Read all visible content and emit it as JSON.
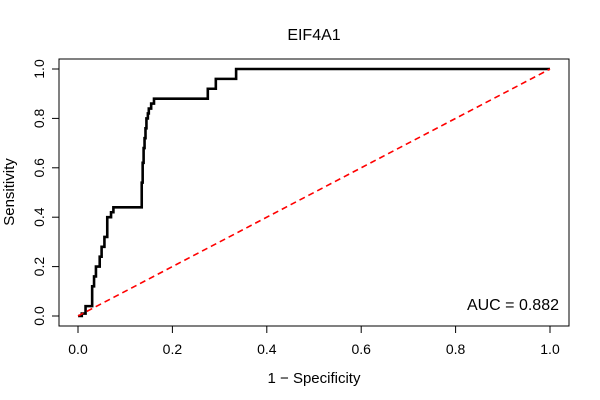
{
  "chart_data": {
    "type": "line",
    "title": "EIF4A1",
    "xlabel": "1 − Specificity",
    "ylabel": "Sensitivity",
    "xlim": [
      0,
      1
    ],
    "ylim": [
      0,
      1
    ],
    "xticks": [
      "0.0",
      "0.2",
      "0.4",
      "0.6",
      "0.8",
      "1.0"
    ],
    "yticks": [
      "0.0",
      "0.2",
      "0.4",
      "0.6",
      "0.8",
      "1.0"
    ],
    "grid": false,
    "annotation": "AUC = 0.882",
    "series": [
      {
        "style": "step",
        "color": "#000000",
        "x": [
          0,
          0.008,
          0.008,
          0.016,
          0.016,
          0.03,
          0.03,
          0.034,
          0.034,
          0.038,
          0.038,
          0.046,
          0.046,
          0.05,
          0.05,
          0.056,
          0.056,
          0.062,
          0.062,
          0.07,
          0.07,
          0.075,
          0.075,
          0.135,
          0.135,
          0.137,
          0.137,
          0.139,
          0.139,
          0.141,
          0.141,
          0.143,
          0.143,
          0.145,
          0.145,
          0.148,
          0.148,
          0.15,
          0.15,
          0.155,
          0.155,
          0.161,
          0.161,
          0.275,
          0.275,
          0.292,
          0.292,
          0.335,
          0.335,
          1.0
        ],
        "y": [
          0,
          0,
          0.01,
          0.01,
          0.04,
          0.04,
          0.12,
          0.12,
          0.16,
          0.16,
          0.2,
          0.2,
          0.24,
          0.24,
          0.28,
          0.28,
          0.32,
          0.32,
          0.4,
          0.4,
          0.42,
          0.42,
          0.44,
          0.44,
          0.54,
          0.54,
          0.62,
          0.62,
          0.68,
          0.68,
          0.72,
          0.72,
          0.76,
          0.76,
          0.8,
          0.8,
          0.82,
          0.82,
          0.84,
          0.84,
          0.86,
          0.86,
          0.88,
          0.88,
          0.92,
          0.92,
          0.96,
          0.96,
          1.0,
          1.0
        ]
      },
      {
        "style": "dashed",
        "color": "#ff0000",
        "x": [
          0,
          1
        ],
        "y": [
          0,
          1
        ]
      }
    ]
  }
}
